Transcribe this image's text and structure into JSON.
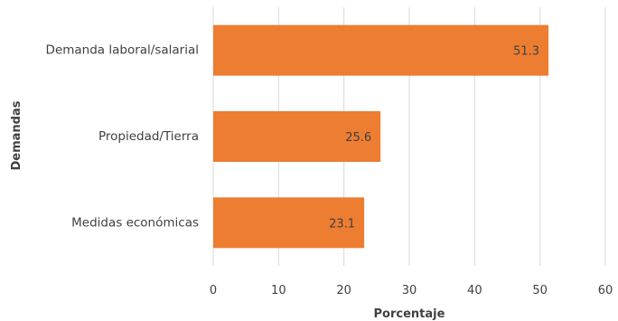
{
  "chart_data": {
    "type": "bar",
    "orientation": "horizontal",
    "categories": [
      "Demanda laboral/salarial",
      "Propiedad/Tierra",
      "Medidas económicas"
    ],
    "values": [
      51.3,
      25.6,
      23.1
    ],
    "data_labels": [
      "51.3",
      "25.6",
      "23.1"
    ],
    "xlabel": "Porcentaje",
    "ylabel": "Demandas",
    "xlim": [
      0,
      60
    ],
    "xticks": [
      "0",
      "10",
      "20",
      "30",
      "40",
      "50",
      "60"
    ],
    "grid": "vertical",
    "legend": "none",
    "bar_color": "#ed7d31"
  }
}
